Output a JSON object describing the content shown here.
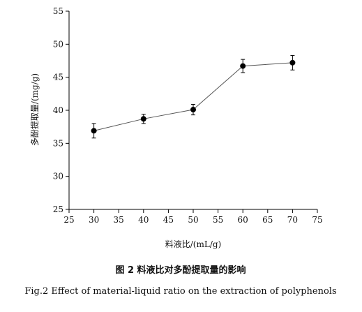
{
  "chart_data": {
    "type": "line",
    "xlabel": "料液比/(mL/g)",
    "ylabel": "多酚提取量/(mg/g)",
    "xlim": [
      25,
      75
    ],
    "ylim": [
      25,
      55
    ],
    "xticks": [
      25,
      30,
      35,
      40,
      45,
      50,
      55,
      60,
      65,
      70,
      75
    ],
    "yticks": [
      25,
      30,
      35,
      40,
      45,
      50,
      55
    ],
    "x": [
      30,
      40,
      50,
      60,
      70
    ],
    "y": [
      36.9,
      38.7,
      40.1,
      46.7,
      47.2
    ],
    "error": [
      1.1,
      0.7,
      0.8,
      1.0,
      1.1
    ],
    "grid": false,
    "marker": "filled-circle",
    "line_color": "#555555",
    "marker_color": "#000000"
  },
  "caption": {
    "chinese": "图 2   料液比对多酚提取量的影响",
    "english": "Fig.2   Effect of material-liquid ratio on the extraction of polyphenols"
  }
}
